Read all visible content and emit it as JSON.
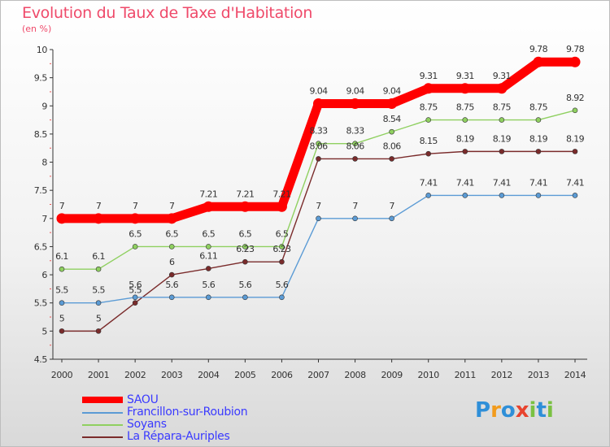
{
  "chart_data": {
    "type": "line",
    "title": "Evolution du Taux de Taxe d'Habitation",
    "subtitle": "(en %)",
    "xlabel": "",
    "ylabel": "(en %)",
    "ylim": [
      4.5,
      10
    ],
    "yticks": [
      "4.5",
      "5",
      "5.5",
      "6",
      "6.5",
      "7",
      "7.5",
      "8",
      "8.5",
      "9",
      "9.5",
      "10"
    ],
    "categories": [
      "2000",
      "2001",
      "2002",
      "2003",
      "2004",
      "2005",
      "2006",
      "2007",
      "2008",
      "2009",
      "2010",
      "2011",
      "2012",
      "2013",
      "2014"
    ],
    "series": [
      {
        "name": "SAOU",
        "color": "#ff0000",
        "values": [
          7,
          7,
          7,
          7,
          7.21,
          7.21,
          7.21,
          9.04,
          9.04,
          9.04,
          9.31,
          9.31,
          9.31,
          9.78,
          9.78
        ],
        "labels": [
          "7",
          "7",
          "7",
          "7",
          "7.21",
          "7.21",
          "7.21",
          "9.04",
          "9.04",
          "9.04",
          "9.31",
          "9.31",
          "9.31",
          "9.78",
          "9.78"
        ]
      },
      {
        "name": "Francillon-sur-Roubion",
        "color": "#5b9bd5",
        "values": [
          5.5,
          5.5,
          5.6,
          5.6,
          5.6,
          5.6,
          5.6,
          7,
          7,
          7,
          7.41,
          7.41,
          7.41,
          7.41,
          7.41
        ],
        "labels": [
          "5.5",
          "5.5",
          "5.6",
          "5.6",
          "5.6",
          "5.6",
          "5.6",
          "7",
          "7",
          "7",
          "7.41",
          "7.41",
          "7.41",
          "7.41",
          "7.41"
        ]
      },
      {
        "name": "Soyans",
        "color": "#8fd060",
        "values": [
          6.1,
          6.1,
          6.5,
          6.5,
          6.5,
          6.5,
          6.5,
          8.33,
          8.33,
          8.54,
          8.75,
          8.75,
          8.75,
          8.75,
          8.92
        ],
        "labels": [
          "6.1",
          "6.1",
          "6.5",
          "6.5",
          "6.5",
          "6.5",
          "6.5",
          "8.33",
          "8.33",
          "8.54",
          "8.75",
          "8.75",
          "8.75",
          "8.75",
          "8.92"
        ]
      },
      {
        "name": "La Répara-Auriples",
        "color": "#7a2b2b",
        "values": [
          5,
          5,
          5.5,
          6,
          6.11,
          6.23,
          6.23,
          8.06,
          8.06,
          8.06,
          8.15,
          8.19,
          8.19,
          8.19,
          8.19
        ],
        "labels": [
          "5",
          "5",
          "5.5",
          "6",
          "6.11",
          "6.23",
          "6.23",
          "8.06",
          "8.06",
          "8.06",
          "8.15",
          "8.19",
          "8.19",
          "8.19",
          "8.19"
        ]
      }
    ],
    "legend_position": "bottom-left",
    "grid": false
  },
  "logo": {
    "text": "Proxiti",
    "letters": [
      {
        "ch": "P",
        "color": "#2f8fd8"
      },
      {
        "ch": "r",
        "color": "#f29b1c"
      },
      {
        "ch": "o",
        "color": "#2f8fd8"
      },
      {
        "ch": "x",
        "color": "#e8432e"
      },
      {
        "ch": "i",
        "color": "#7ac142"
      },
      {
        "ch": "t",
        "color": "#2f8fd8"
      },
      {
        "ch": "i",
        "color": "#7ac142"
      }
    ]
  }
}
